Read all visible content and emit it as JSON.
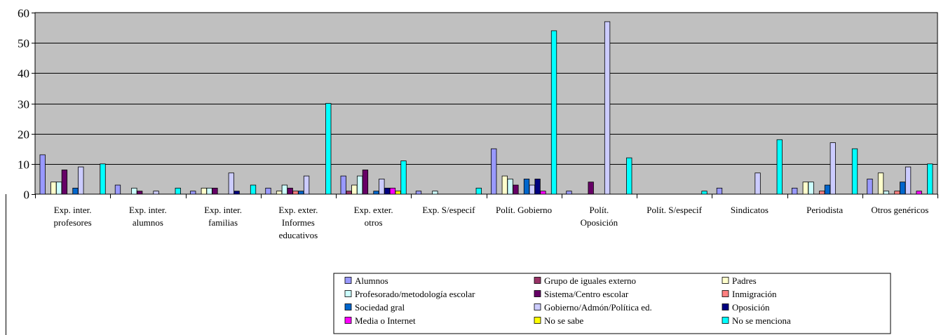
{
  "chart_data": {
    "type": "bar",
    "title": "",
    "xlabel": "",
    "ylabel": "",
    "ylim": [
      0,
      60
    ],
    "yticks": [
      0,
      10,
      20,
      30,
      40,
      50,
      60
    ],
    "grid": true,
    "legend_position": "bottom-center",
    "plot_background": "#c0c0c0",
    "categories": [
      "Exp. inter. profesores",
      "Exp. inter. alumnos",
      "Exp. inter. familias",
      "Exp. exter. Informes educativos",
      "Exp. exter. otros",
      "Exp. S/especif",
      "Polít. Gobierno",
      "Polít. Oposición",
      "Polít. S/especif",
      "Sindicatos",
      "Periodista",
      "Otros genéricos"
    ],
    "category_lines": [
      [
        "Exp. inter.",
        "profesores"
      ],
      [
        "Exp. inter.",
        "alumnos"
      ],
      [
        "Exp. inter.",
        "familias"
      ],
      [
        "Exp. exter.",
        "Informes",
        "educativos"
      ],
      [
        "Exp. exter.",
        "otros"
      ],
      [
        "Exp. S/especif"
      ],
      [
        "Polít. Gobierno"
      ],
      [
        "Polít.",
        "Oposición"
      ],
      [
        "Polít. S/especif"
      ],
      [
        "Sindicatos"
      ],
      [
        "Periodista"
      ],
      [
        "Otros genéricos"
      ]
    ],
    "series": [
      {
        "name": "Alumnos",
        "color": "#9999ff",
        "values": [
          13,
          3,
          1,
          2,
          6,
          1,
          15,
          1,
          0,
          2,
          2,
          5
        ]
      },
      {
        "name": "Grupo de iguales externo",
        "color": "#993366",
        "values": [
          0,
          0,
          0,
          0,
          1,
          0,
          0,
          0,
          0,
          0,
          0,
          0
        ]
      },
      {
        "name": "Padres",
        "color": "#ffffcc",
        "values": [
          4,
          0,
          2,
          1,
          3,
          0,
          6,
          0,
          0,
          0,
          4,
          7
        ]
      },
      {
        "name": "Profesorado/metodología escolar",
        "color": "#ccffff",
        "values": [
          4,
          2,
          2,
          3,
          6,
          1,
          5,
          0,
          0,
          0,
          4,
          1
        ]
      },
      {
        "name": "Sistema/Centro escolar",
        "color": "#660066",
        "values": [
          8,
          1,
          2,
          2,
          8,
          0,
          3,
          4,
          0,
          0,
          0,
          0
        ]
      },
      {
        "name": "Inmigración",
        "color": "#ff8080",
        "values": [
          0,
          0,
          0,
          1,
          0,
          0,
          0,
          0,
          0,
          0,
          1,
          1
        ]
      },
      {
        "name": "Sociedad gral",
        "color": "#0066cc",
        "values": [
          2,
          0,
          0,
          1,
          1,
          0,
          5,
          0,
          0,
          0,
          3,
          4
        ]
      },
      {
        "name": "Gobierno/Admón/Política ed.",
        "color": "#ccccff",
        "values": [
          9,
          1,
          7,
          6,
          5,
          0,
          3,
          57,
          0,
          7,
          17,
          9
        ]
      },
      {
        "name": "Oposición",
        "color": "#000080",
        "values": [
          0,
          0,
          1,
          0,
          2,
          0,
          5,
          0,
          0,
          0,
          0,
          0
        ]
      },
      {
        "name": "Media o Internet",
        "color": "#ff00ff",
        "values": [
          0,
          0,
          0,
          0,
          2,
          0,
          1,
          0,
          0,
          0,
          0,
          1
        ]
      },
      {
        "name": "No se sabe",
        "color": "#ffff00",
        "values": [
          0,
          0,
          0,
          0,
          1,
          0,
          0,
          0,
          0,
          0,
          0,
          0
        ]
      },
      {
        "name": "No se menciona",
        "color": "#00ffff",
        "values": [
          10,
          2,
          3,
          30,
          11,
          2,
          54,
          12,
          1,
          18,
          15,
          10
        ]
      }
    ]
  }
}
